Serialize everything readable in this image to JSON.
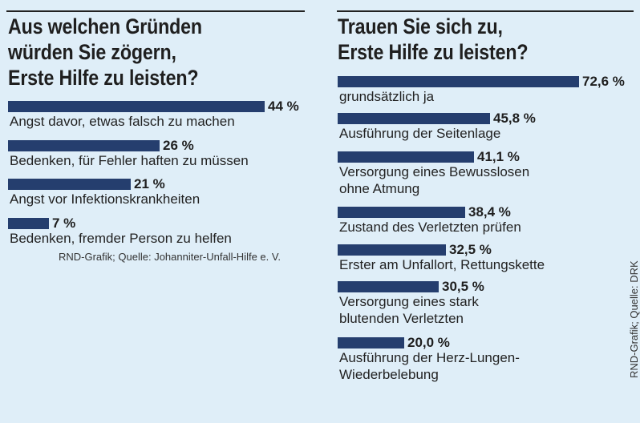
{
  "chart_data": [
    {
      "type": "bar",
      "orientation": "horizontal",
      "title": "Aus welchen Gründen würden Sie zögern, Erste Hilfe zu leisten?",
      "title_lines": [
        "Aus welchen Gründen",
        "würden Sie zögern,",
        "Erste Hilfe zu leisten?"
      ],
      "categories": [
        "Angst davor, etwas falsch zu machen",
        "Bedenken, für Fehler haften zu müssen",
        "Angst vor Infektionskrankheiten",
        "Bedenken, fremder Person zu helfen"
      ],
      "values": [
        44,
        26,
        21,
        7
      ],
      "value_labels": [
        "44 %",
        "26 %",
        "21 %",
        "7 %"
      ],
      "unit": "%",
      "xlim": [
        0,
        50
      ],
      "source": "RND-Grafik; Quelle: Johanniter-Unfall-Hilfe e. V."
    },
    {
      "type": "bar",
      "orientation": "horizontal",
      "title": "Trauen Sie sich zu, Erste Hilfe zu leisten?",
      "title_lines": [
        "Trauen Sie sich zu,",
        "Erste Hilfe zu leisten?"
      ],
      "categories": [
        "grundsätzlich ja",
        "Ausführung der Seitenlage",
        "Versorgung eines Bewusslosen\nohne Atmung",
        "Zustand des Verletzten prüfen",
        "Erster am Unfallort, Rettungskette",
        "Versorgung eines stark\nblutenden Verletzten",
        "Ausführung der Herz-Lungen-\nWiederbelebung"
      ],
      "values": [
        72.6,
        45.8,
        41.1,
        38.4,
        32.5,
        30.5,
        20.0
      ],
      "value_labels": [
        "72,6 %",
        "45,8 %",
        "41,1 %",
        "38,4 %",
        "32,5 %",
        "30,5 %",
        "20,0 %"
      ],
      "unit": "%",
      "xlim": [
        0,
        80
      ],
      "source": "RND-Grafik; Quelle: DRK"
    }
  ],
  "colors": {
    "background": "#dfeef8",
    "bar": "#253e6e",
    "text": "#1f1f1f"
  }
}
